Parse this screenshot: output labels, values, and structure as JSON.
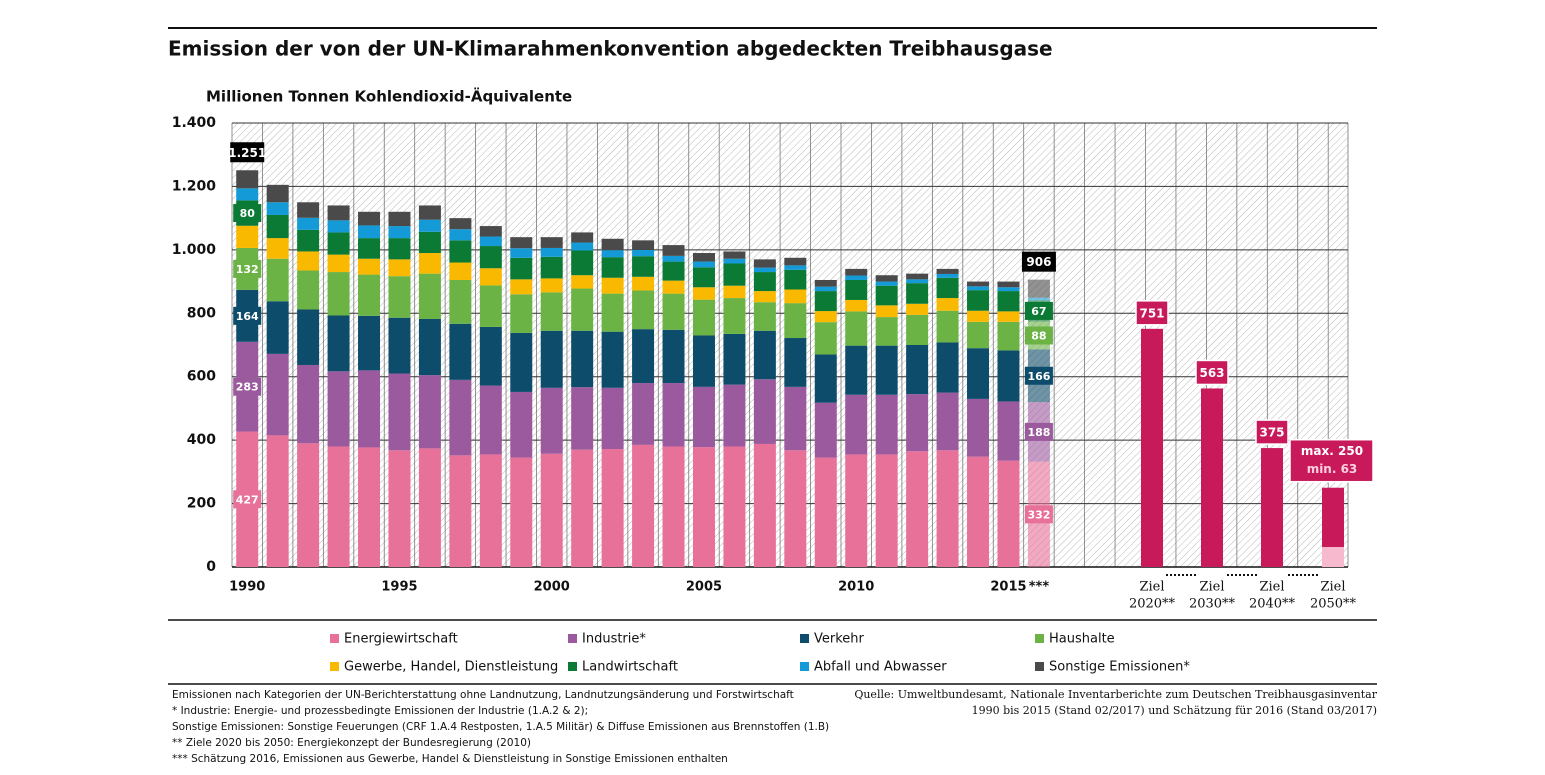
{
  "chart_data": {
    "type": "stacked_bar",
    "title": "Emission der von der UN-Klimarahmenkonvention abgedeckten Treibhausgase",
    "y_label": "Millionen Tonnen Kohlendioxid-Äquivalente",
    "categories": [
      "1990",
      null,
      null,
      null,
      null,
      "1995",
      null,
      null,
      null,
      null,
      "2000",
      null,
      null,
      null,
      null,
      "2005",
      null,
      null,
      null,
      null,
      "2010",
      null,
      null,
      null,
      null,
      "2015",
      "***"
    ],
    "ylim": [
      0,
      1400
    ],
    "yticks": [
      0,
      200,
      400,
      600,
      800,
      {
        "value": 1000,
        "label": "1.000"
      },
      {
        "value": 1200,
        "label": "1.200"
      },
      {
        "value": 1400,
        "label": "1.400"
      }
    ],
    "grid": true,
    "series": [
      {
        "name": "Energiewirtschaft",
        "color": "#e8719a",
        "values": [
          427,
          415,
          390,
          380,
          377,
          368,
          374,
          352,
          355,
          345,
          357,
          370,
          372,
          385,
          380,
          378,
          380,
          388,
          368,
          345,
          355,
          355,
          365,
          368,
          348,
          335,
          332
        ],
        "value_labels": [
          "427",
          null,
          null,
          null,
          null,
          null,
          null,
          null,
          null,
          null,
          null,
          null,
          null,
          null,
          null,
          null,
          null,
          null,
          null,
          null,
          null,
          null,
          null,
          null,
          null,
          null,
          "332"
        ]
      },
      {
        "name": "Industrie*",
        "color": "#9c5a9e",
        "values": [
          283,
          257,
          247,
          237,
          243,
          242,
          231,
          238,
          217,
          207,
          208,
          197,
          193,
          195,
          200,
          190,
          195,
          204,
          200,
          173,
          188,
          188,
          180,
          182,
          182,
          187,
          188
        ],
        "value_labels": [
          "283",
          null,
          null,
          null,
          null,
          null,
          null,
          null,
          null,
          null,
          null,
          null,
          null,
          null,
          null,
          null,
          null,
          null,
          null,
          null,
          null,
          null,
          null,
          null,
          null,
          null,
          "188"
        ]
      },
      {
        "name": "Verkehr",
        "color": "#0d4d6b",
        "values": [
          164,
          166,
          175,
          176,
          172,
          176,
          177,
          177,
          185,
          186,
          180,
          178,
          177,
          170,
          168,
          162,
          160,
          153,
          154,
          152,
          155,
          155,
          155,
          158,
          160,
          161,
          166
        ],
        "value_labels": [
          "164",
          null,
          null,
          null,
          null,
          null,
          null,
          null,
          null,
          null,
          null,
          null,
          null,
          null,
          null,
          null,
          null,
          null,
          null,
          null,
          null,
          null,
          null,
          null,
          null,
          null,
          "166"
        ]
      },
      {
        "name": "Haushalte",
        "color": "#6bb344",
        "values": [
          132,
          134,
          123,
          137,
          130,
          131,
          143,
          138,
          131,
          122,
          121,
          133,
          120,
          122,
          114,
          113,
          113,
          90,
          110,
          102,
          108,
          90,
          95,
          100,
          83,
          90,
          88
        ],
        "value_labels": [
          "132",
          null,
          null,
          null,
          null,
          null,
          null,
          null,
          null,
          null,
          null,
          null,
          null,
          null,
          null,
          null,
          null,
          null,
          null,
          null,
          null,
          null,
          null,
          null,
          null,
          null,
          "88"
        ]
      },
      {
        "name": "Gewerbe, Handel, Dienstleistung",
        "color": "#f9b900",
        "values": [
          70,
          65,
          60,
          55,
          50,
          53,
          65,
          55,
          54,
          47,
          44,
          42,
          50,
          43,
          41,
          39,
          39,
          35,
          43,
          35,
          36,
          37,
          35,
          40,
          35,
          33,
          null
        ]
      },
      {
        "name": "Landwirtschaft",
        "color": "#0a7a34",
        "values": [
          80,
          73,
          68,
          70,
          65,
          67,
          67,
          70,
          70,
          68,
          68,
          78,
          65,
          65,
          60,
          63,
          70,
          60,
          62,
          63,
          63,
          62,
          65,
          64,
          65,
          64,
          67
        ],
        "value_labels": [
          "80",
          null,
          null,
          null,
          null,
          null,
          null,
          null,
          null,
          null,
          null,
          null,
          null,
          null,
          null,
          null,
          null,
          null,
          null,
          null,
          null,
          null,
          null,
          null,
          null,
          null,
          "67"
        ]
      },
      {
        "name": "Abfall und Abwasser",
        "color": "#149bd7",
        "values": [
          38,
          40,
          38,
          38,
          40,
          38,
          38,
          35,
          30,
          30,
          28,
          25,
          22,
          20,
          18,
          18,
          15,
          14,
          14,
          14,
          14,
          13,
          12,
          12,
          12,
          12,
          8
        ]
      },
      {
        "name": "Sonstige Emissionen*",
        "color": "#4a4a4a",
        "values": [
          57,
          55,
          49,
          47,
          43,
          45,
          45,
          35,
          33,
          35,
          34,
          32,
          36,
          30,
          34,
          27,
          23,
          26,
          24,
          21,
          21,
          20,
          18,
          16,
          15,
          18,
          57
        ]
      }
    ],
    "annotations": [
      {
        "category": "1990",
        "value": 1251,
        "label": "1.251"
      },
      {
        "category": "***",
        "value": 906,
        "label": "906"
      }
    ],
    "targets": {
      "color": "#c81a5a",
      "min_color": "#f7b9cd",
      "categories": [
        [
          "Ziel",
          "2020**"
        ],
        [
          "Ziel",
          "2030**"
        ],
        [
          "Ziel",
          "2040**"
        ],
        [
          "Ziel",
          "2050**"
        ]
      ],
      "values": [
        751,
        563,
        375,
        250
      ],
      "value_labels": [
        "751",
        "563",
        "375",
        "max. 250"
      ],
      "min": {
        "value": 63,
        "label": "min. 63"
      }
    },
    "notes": [
      "Emissionen nach Kategorien der UN-Berichterstattung ohne Landnutzung, Landnutzungsänderung und Forstwirtschaft",
      "* Industrie: Energie- und prozessbedingte Emissionen der Industrie (1.A.2 & 2);",
      "Sonstige Emissionen: Sonstige Feuerungen (CRF 1.A.4 Restposten, 1.A.5 Militär) & Diffuse Emissionen aus Brennstoffen (1.B)",
      "** Ziele 2020 bis 2050: Energiekonzept der Bundesregierung (2010)",
      "*** Schätzung 2016, Emissionen aus Gewerbe, Handel & Dienstleistung in Sonstige Emissionen enthalten"
    ],
    "source": [
      "Quelle: Umweltbundesamt, Nationale Inventarberichte zum Deutschen Treibhausgasinventar",
      "1990 bis 2015 (Stand 02/2017) und Schätzung für 2016 (Stand 03/2017)"
    ]
  }
}
